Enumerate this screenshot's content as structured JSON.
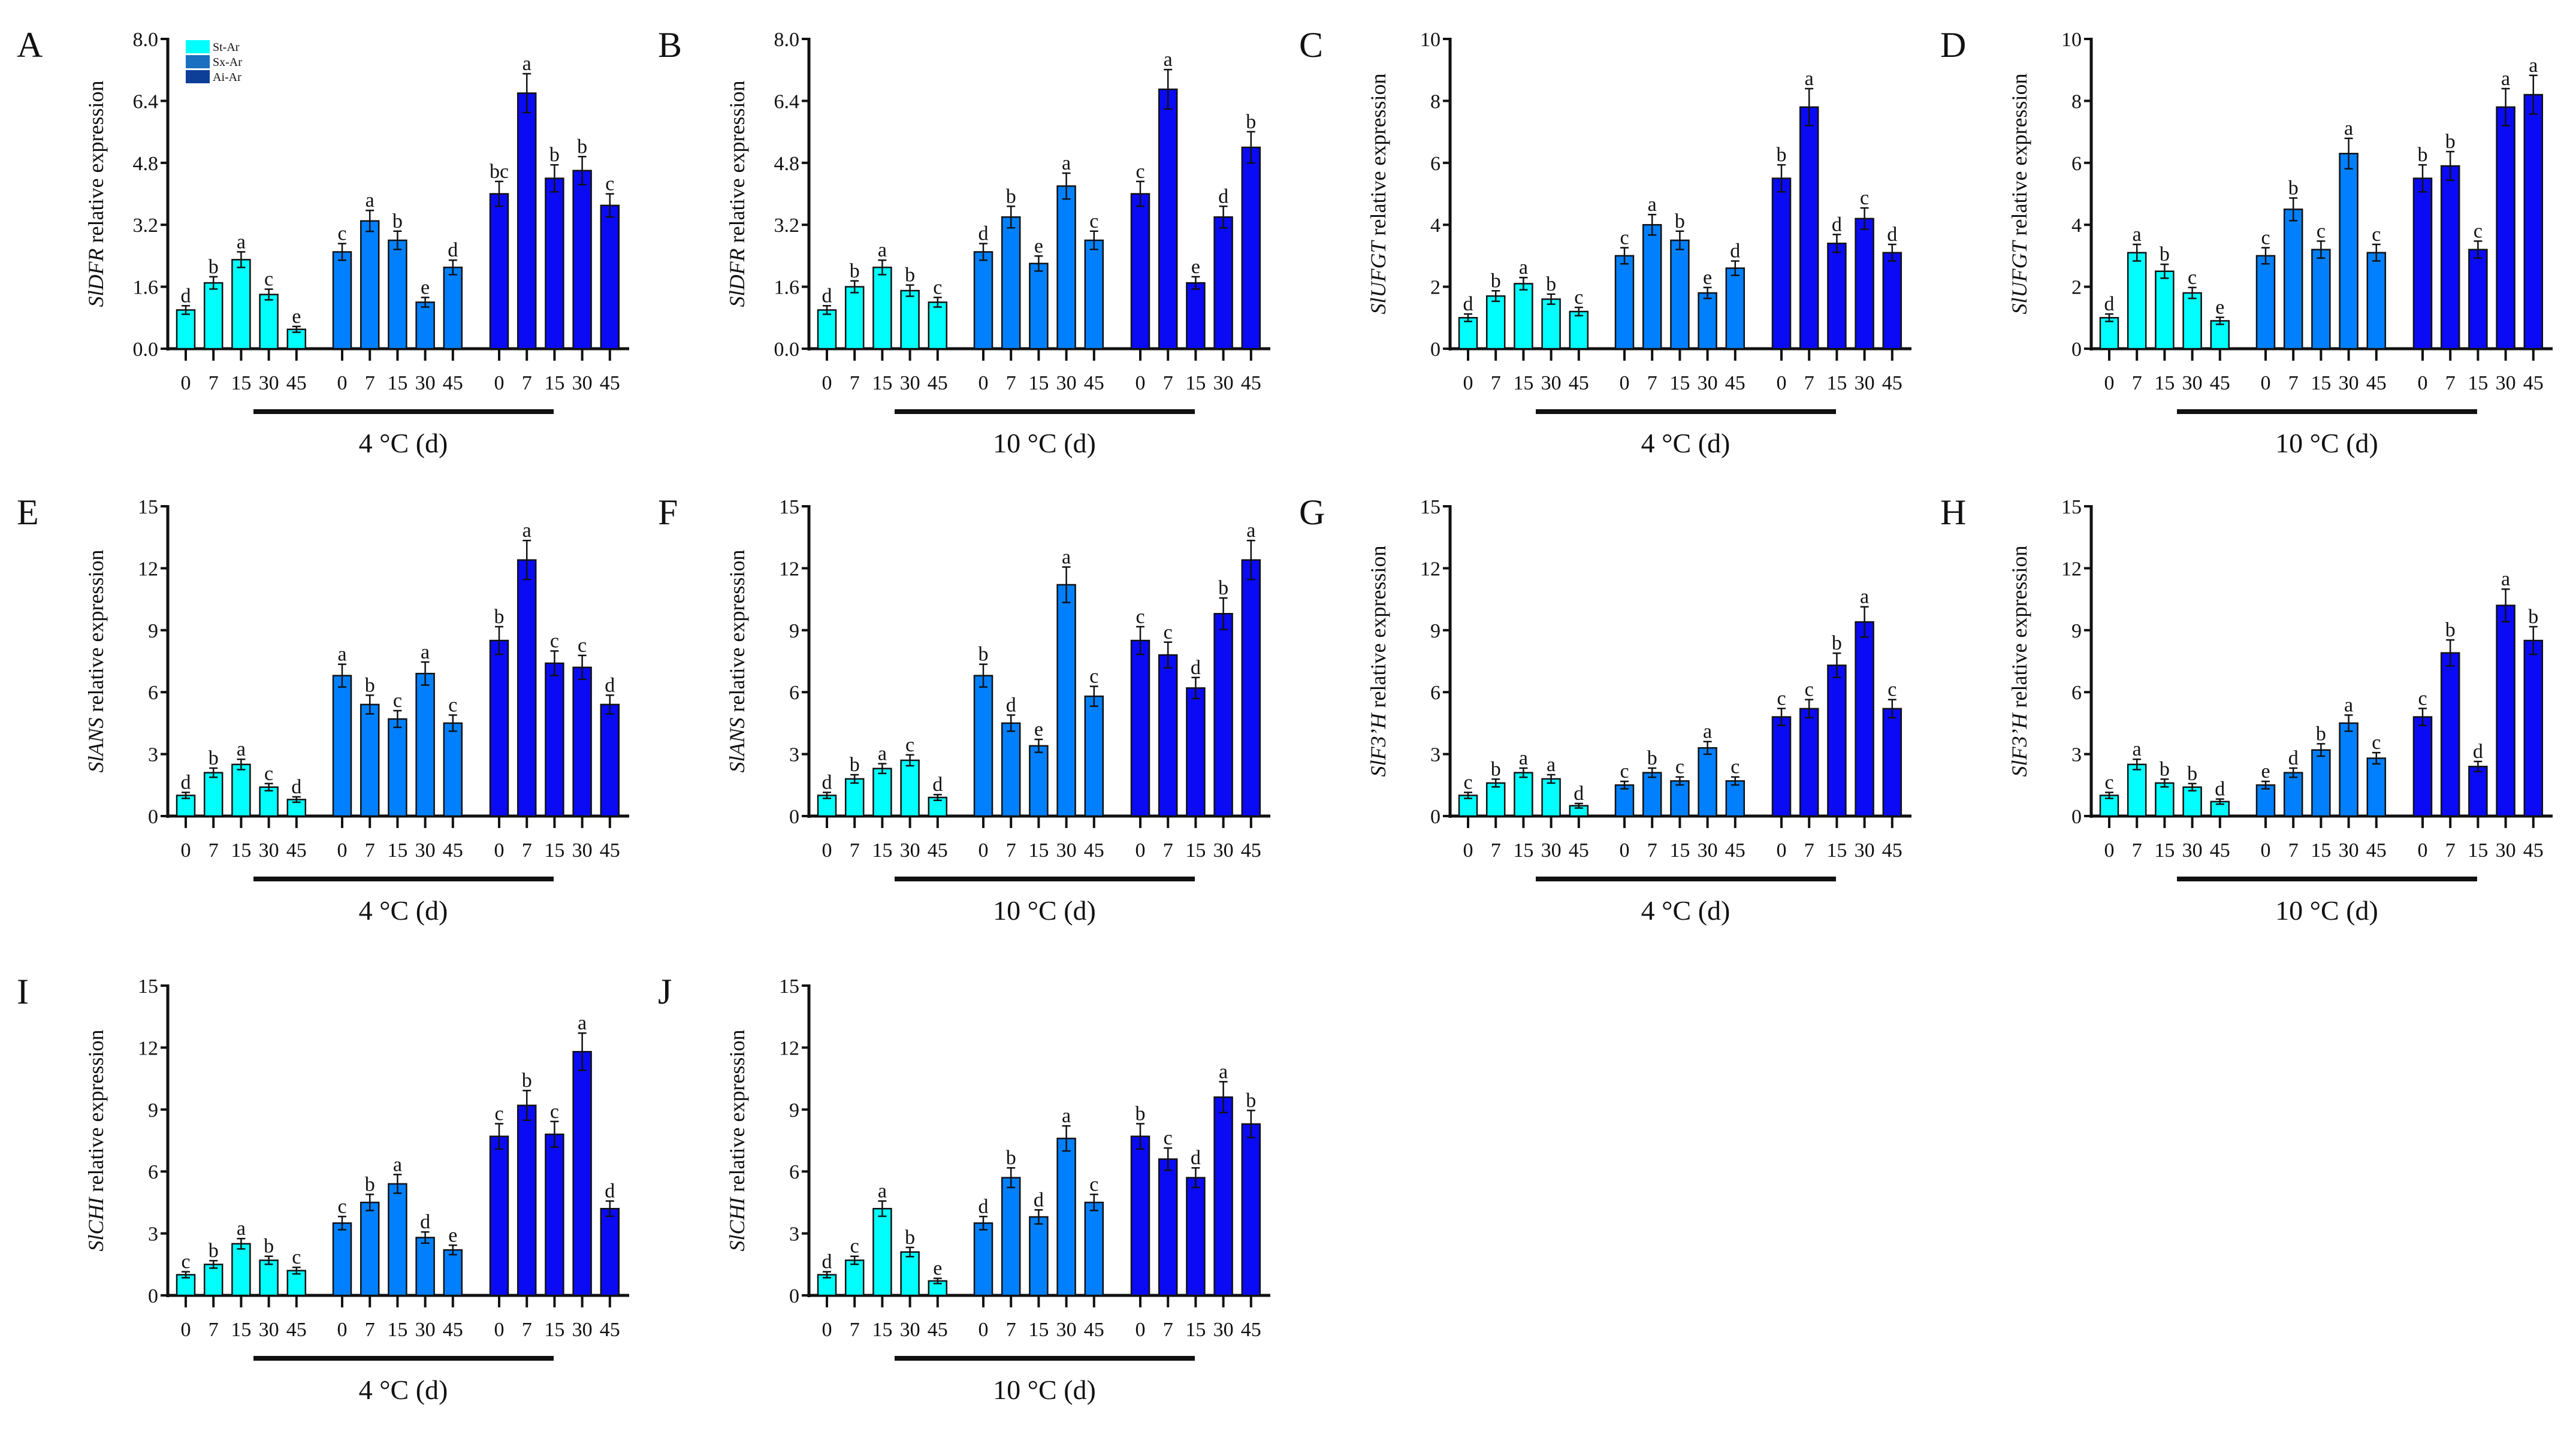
{
  "chart_data": {
    "type": "bar",
    "y_label_suffix": " relative expression",
    "x_categories": [
      "0",
      "7",
      "15",
      "30",
      "45"
    ],
    "legend": {
      "placement": "top-left",
      "entries": [
        {
          "name": "St-Ar",
          "color": "#00FFFF"
        },
        {
          "name": "Sx-Ar",
          "color": "#1A6FC0"
        },
        {
          "name": "Ai-Ar",
          "color": "#0D3F99"
        }
      ]
    },
    "series_colors": [
      "#00FFFF",
      "#0080FF",
      "#0A0AF5"
    ],
    "error_approx_fraction": 0.07,
    "panels": [
      {
        "letter": "A",
        "gene": "SlDFR",
        "temperature": "4 °C (d)",
        "ylim": [
          0,
          8
        ],
        "yticks": [
          "0.0",
          "1.6",
          "3.2",
          "4.8",
          "6.4",
          "8.0"
        ],
        "series": [
          {
            "name": "St-Ar",
            "values": [
              1.0,
              1.7,
              2.3,
              1.4,
              0.5
            ],
            "letters": [
              "d",
              "b",
              "a",
              "c",
              "e"
            ]
          },
          {
            "name": "Sx-Ar",
            "values": [
              2.5,
              3.3,
              2.8,
              1.2,
              2.1
            ],
            "letters": [
              "c",
              "a",
              "b",
              "e",
              "d"
            ]
          },
          {
            "name": "Ai-Ar",
            "values": [
              4.0,
              6.6,
              4.4,
              4.6,
              3.7
            ],
            "letters": [
              "bc",
              "a",
              "b",
              "b",
              "c"
            ]
          }
        ]
      },
      {
        "letter": "B",
        "gene": "SlDFR",
        "temperature": "10 °C (d)",
        "ylim": [
          0,
          8
        ],
        "yticks": [
          "0.0",
          "1.6",
          "3.2",
          "4.8",
          "6.4",
          "8.0"
        ],
        "series": [
          {
            "name": "St-Ar",
            "values": [
              1.0,
              1.6,
              2.1,
              1.5,
              1.2
            ],
            "letters": [
              "d",
              "b",
              "a",
              "b",
              "c"
            ]
          },
          {
            "name": "Sx-Ar",
            "values": [
              2.5,
              3.4,
              2.2,
              4.2,
              2.8
            ],
            "letters": [
              "d",
              "b",
              "e",
              "a",
              "c"
            ]
          },
          {
            "name": "Ai-Ar",
            "values": [
              4.0,
              6.7,
              1.7,
              3.4,
              5.2
            ],
            "letters": [
              "c",
              "a",
              "e",
              "d",
              "b"
            ]
          }
        ]
      },
      {
        "letter": "C",
        "gene": "SlUFGT",
        "temperature": "4 °C (d)",
        "ylim": [
          0,
          10
        ],
        "yticks": [
          "0",
          "2",
          "4",
          "6",
          "8",
          "10"
        ],
        "series": [
          {
            "name": "St-Ar",
            "values": [
              1.0,
              1.7,
              2.1,
              1.6,
              1.2
            ],
            "letters": [
              "d",
              "b",
              "a",
              "b",
              "c"
            ]
          },
          {
            "name": "Sx-Ar",
            "values": [
              3.0,
              4.0,
              3.5,
              1.8,
              2.6
            ],
            "letters": [
              "c",
              "a",
              "b",
              "e",
              "d"
            ]
          },
          {
            "name": "Ai-Ar",
            "values": [
              5.5,
              7.8,
              3.4,
              4.2,
              3.1
            ],
            "letters": [
              "b",
              "a",
              "d",
              "c",
              "d"
            ]
          }
        ]
      },
      {
        "letter": "D",
        "gene": "SlUFGT",
        "temperature": "10 °C (d)",
        "ylim": [
          0,
          10
        ],
        "yticks": [
          "0",
          "2",
          "4",
          "6",
          "8",
          "10"
        ],
        "series": [
          {
            "name": "St-Ar",
            "values": [
              1.0,
              3.1,
              2.5,
              1.8,
              0.9
            ],
            "letters": [
              "d",
              "a",
              "b",
              "c",
              "e"
            ]
          },
          {
            "name": "Sx-Ar",
            "values": [
              3.0,
              4.5,
              3.2,
              6.3,
              3.1
            ],
            "letters": [
              "c",
              "b",
              "c",
              "a",
              "c"
            ]
          },
          {
            "name": "Ai-Ar",
            "values": [
              5.5,
              5.9,
              3.2,
              7.8,
              8.2
            ],
            "letters": [
              "b",
              "b",
              "c",
              "a",
              "a"
            ]
          }
        ]
      },
      {
        "letter": "E",
        "gene": "SlANS",
        "temperature": "4 °C (d)",
        "ylim": [
          0,
          15
        ],
        "yticks": [
          "0",
          "3",
          "6",
          "9",
          "12",
          "15"
        ],
        "series": [
          {
            "name": "St-Ar",
            "values": [
              1.0,
              2.1,
              2.5,
              1.4,
              0.8
            ],
            "letters": [
              "d",
              "b",
              "a",
              "c",
              "d"
            ]
          },
          {
            "name": "Sx-Ar",
            "values": [
              6.8,
              5.4,
              4.7,
              6.9,
              4.5
            ],
            "letters": [
              "a",
              "b",
              "c",
              "a",
              "c"
            ]
          },
          {
            "name": "Ai-Ar",
            "values": [
              8.5,
              12.4,
              7.4,
              7.2,
              5.4
            ],
            "letters": [
              "b",
              "a",
              "c",
              "c",
              "d"
            ]
          }
        ]
      },
      {
        "letter": "F",
        "gene": "SlANS",
        "temperature": "10 °C (d)",
        "ylim": [
          0,
          15
        ],
        "yticks": [
          "0",
          "3",
          "6",
          "9",
          "12",
          "15"
        ],
        "series": [
          {
            "name": "St-Ar",
            "values": [
              1.0,
              1.8,
              2.3,
              2.7,
              0.9
            ],
            "letters": [
              "d",
              "b",
              "a",
              "c",
              "d"
            ]
          },
          {
            "name": "Sx-Ar",
            "values": [
              6.8,
              4.5,
              3.4,
              11.2,
              5.8
            ],
            "letters": [
              "b",
              "d",
              "e",
              "a",
              "c"
            ]
          },
          {
            "name": "Ai-Ar",
            "values": [
              8.5,
              7.8,
              6.2,
              9.8,
              12.4
            ],
            "letters": [
              "c",
              "c",
              "d",
              "b",
              "a"
            ]
          }
        ]
      },
      {
        "letter": "G",
        "gene": "SlF3’H",
        "temperature": "4 °C (d)",
        "ylim": [
          0,
          15
        ],
        "yticks": [
          "0",
          "3",
          "6",
          "9",
          "12",
          "15"
        ],
        "series": [
          {
            "name": "St-Ar",
            "values": [
              1.0,
              1.6,
              2.1,
              1.8,
              0.5
            ],
            "letters": [
              "c",
              "b",
              "a",
              "a",
              "d"
            ]
          },
          {
            "name": "Sx-Ar",
            "values": [
              1.5,
              2.1,
              1.7,
              3.3,
              1.7
            ],
            "letters": [
              "c",
              "b",
              "c",
              "a",
              "c"
            ]
          },
          {
            "name": "Ai-Ar",
            "values": [
              4.8,
              5.2,
              7.3,
              9.4,
              5.2
            ],
            "letters": [
              "c",
              "c",
              "b",
              "a",
              "c"
            ]
          }
        ]
      },
      {
        "letter": "H",
        "gene": "SlF3’H",
        "temperature": "10 °C (d)",
        "ylim": [
          0,
          15
        ],
        "yticks": [
          "0",
          "3",
          "6",
          "9",
          "12",
          "15"
        ],
        "series": [
          {
            "name": "St-Ar",
            "values": [
              1.0,
              2.5,
              1.6,
              1.4,
              0.7
            ],
            "letters": [
              "c",
              "a",
              "b",
              "b",
              "d"
            ]
          },
          {
            "name": "Sx-Ar",
            "values": [
              1.5,
              2.1,
              3.2,
              4.5,
              2.8
            ],
            "letters": [
              "e",
              "d",
              "b",
              "a",
              "c"
            ]
          },
          {
            "name": "Ai-Ar",
            "values": [
              4.8,
              7.9,
              2.4,
              10.2,
              8.5
            ],
            "letters": [
              "c",
              "b",
              "d",
              "a",
              "b"
            ]
          }
        ]
      },
      {
        "letter": "I",
        "gene": "SlCHI",
        "temperature": "4 °C (d)",
        "ylim": [
          0,
          15
        ],
        "yticks": [
          "0",
          "3",
          "6",
          "9",
          "12",
          "15"
        ],
        "series": [
          {
            "name": "St-Ar",
            "values": [
              1.0,
              1.5,
              2.5,
              1.7,
              1.2
            ],
            "letters": [
              "c",
              "b",
              "a",
              "b",
              "c"
            ]
          },
          {
            "name": "Sx-Ar",
            "values": [
              3.5,
              4.5,
              5.4,
              2.8,
              2.2
            ],
            "letters": [
              "c",
              "b",
              "a",
              "d",
              "e"
            ]
          },
          {
            "name": "Ai-Ar",
            "values": [
              7.7,
              9.2,
              7.8,
              11.8,
              4.2
            ],
            "letters": [
              "c",
              "b",
              "c",
              "a",
              "d"
            ]
          }
        ]
      },
      {
        "letter": "J",
        "gene": "SlCHI",
        "temperature": "10 °C (d)",
        "ylim": [
          0,
          15
        ],
        "yticks": [
          "0",
          "3",
          "6",
          "9",
          "12",
          "15"
        ],
        "series": [
          {
            "name": "St-Ar",
            "values": [
              1.0,
              1.7,
              4.2,
              2.1,
              0.7
            ],
            "letters": [
              "d",
              "c",
              "a",
              "b",
              "e"
            ]
          },
          {
            "name": "Sx-Ar",
            "values": [
              3.5,
              5.7,
              3.8,
              7.6,
              4.5
            ],
            "letters": [
              "d",
              "b",
              "d",
              "a",
              "c"
            ]
          },
          {
            "name": "Ai-Ar",
            "values": [
              7.7,
              6.6,
              5.7,
              9.6,
              8.3
            ],
            "letters": [
              "b",
              "c",
              "d",
              "a",
              "b"
            ]
          }
        ]
      }
    ]
  }
}
